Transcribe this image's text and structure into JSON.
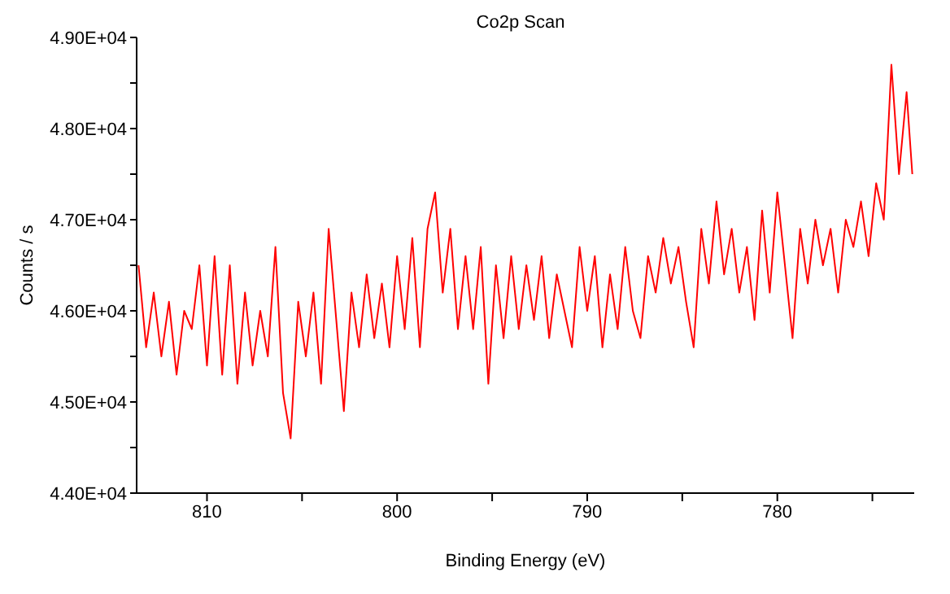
{
  "chart_data": {
    "type": "line",
    "title": "Co2p Scan",
    "xlabel": "Binding Energy (eV)",
    "ylabel": "Counts / s",
    "x": [
      813.6,
      813.2,
      812.8,
      812.4,
      812.0,
      811.6,
      811.2,
      810.8,
      810.4,
      810.0,
      809.6,
      809.2,
      808.8,
      808.4,
      808.0,
      807.6,
      807.2,
      806.8,
      806.4,
      806.0,
      805.6,
      805.2,
      804.8,
      804.4,
      804.0,
      803.6,
      803.2,
      802.8,
      802.4,
      802.0,
      801.6,
      801.2,
      800.8,
      800.4,
      800.0,
      799.6,
      799.2,
      798.8,
      798.4,
      798.0,
      797.6,
      797.2,
      796.8,
      796.4,
      796.0,
      795.6,
      795.2,
      794.8,
      794.4,
      794.0,
      793.6,
      793.2,
      792.8,
      792.4,
      792.0,
      791.6,
      791.2,
      790.8,
      790.4,
      790.0,
      789.6,
      789.2,
      788.8,
      788.4,
      788.0,
      787.6,
      787.2,
      786.8,
      786.4,
      786.0,
      785.6,
      785.2,
      784.8,
      784.4,
      784.0,
      783.6,
      783.2,
      782.8,
      782.4,
      782.0,
      781.6,
      781.2,
      780.8,
      780.4,
      780.0,
      779.6,
      779.2,
      778.8,
      778.4,
      778.0,
      777.6,
      777.2,
      776.8,
      776.4,
      776.0,
      775.6,
      775.2,
      774.8,
      774.4,
      774.0,
      773.6,
      773.2,
      772.9
    ],
    "series": [
      {
        "color": "#ff0000",
        "values": [
          46500,
          45600,
          46200,
          45500,
          46100,
          45300,
          46000,
          45800,
          46500,
          45400,
          46600,
          45300,
          46500,
          45200,
          46200,
          45400,
          46000,
          45500,
          46700,
          45100,
          44600,
          46100,
          45500,
          46200,
          45200,
          46900,
          45900,
          44900,
          46200,
          45600,
          46400,
          45700,
          46300,
          45600,
          46600,
          45800,
          46800,
          45600,
          46900,
          47300,
          46200,
          46900,
          45800,
          46600,
          45800,
          46700,
          45200,
          46500,
          45700,
          46600,
          45800,
          46500,
          45900,
          46600,
          45700,
          46400,
          46000,
          45600,
          46700,
          46000,
          46600,
          45600,
          46400,
          45800,
          46700,
          46000,
          45700,
          46600,
          46200,
          46800,
          46300,
          46700,
          46100,
          45600,
          46900,
          46300,
          47200,
          46400,
          46900,
          46200,
          46700,
          45900,
          47100,
          46200,
          47300,
          46500,
          45700,
          46900,
          46300,
          47000,
          46500,
          46900,
          46200,
          47000,
          46700,
          47200,
          46600,
          47400,
          47000,
          48700,
          47500,
          48400,
          47500
        ]
      }
    ],
    "xlim": [
      813.7,
      772.8
    ],
    "xticks": [
      810,
      {
        "value": 805,
        "label": null
      },
      800,
      {
        "value": 795,
        "label": null
      },
      790,
      {
        "value": 785,
        "label": null
      },
      780,
      {
        "value": 775,
        "label": null
      }
    ],
    "ylim": [
      44000,
      49000
    ],
    "yticks": [
      {
        "value": 44000,
        "label": "4.40E+04"
      },
      {
        "value": 44500,
        "label": null
      },
      {
        "value": 45000,
        "label": "4.50E+04"
      },
      {
        "value": 45500,
        "label": null
      },
      {
        "value": 46000,
        "label": "4.60E+04"
      },
      {
        "value": 46500,
        "label": null
      },
      {
        "value": 47000,
        "label": "4.70E+04"
      },
      {
        "value": 47500,
        "label": null
      },
      {
        "value": 48000,
        "label": "4.80E+04"
      },
      {
        "value": 48500,
        "label": null
      },
      {
        "value": 49000,
        "label": "4.90E+04"
      }
    ],
    "grid": false,
    "legend": false,
    "marker": "none",
    "line_style": "solid"
  }
}
